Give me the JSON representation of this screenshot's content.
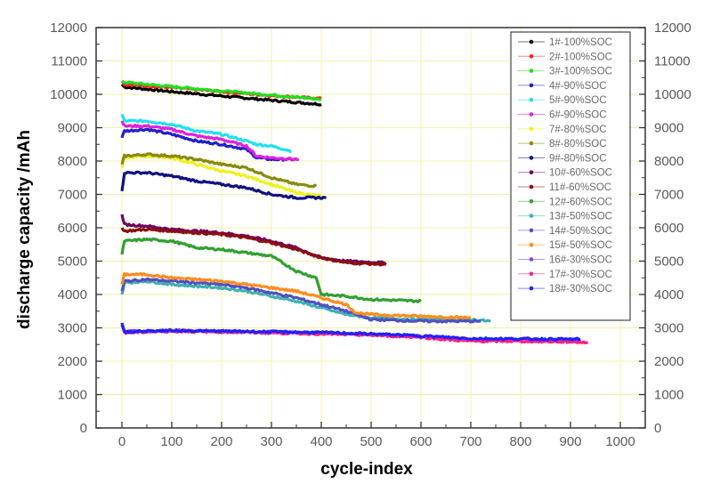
{
  "chart_data": {
    "type": "scatter",
    "title": "",
    "xlabel": "cycle-index",
    "ylabel": "discharge capacity /mAh",
    "xlim": [
      -50,
      1050
    ],
    "ylim": [
      0,
      12000
    ],
    "x_ticks": [
      0,
      100,
      200,
      300,
      400,
      500,
      600,
      700,
      800,
      900,
      1000
    ],
    "y_ticks": [
      0,
      1000,
      2000,
      3000,
      4000,
      5000,
      6000,
      7000,
      8000,
      9000,
      10000,
      11000,
      12000
    ],
    "right_y_ticks": [
      0,
      1000,
      2000,
      3000,
      4000,
      5000,
      6000,
      7000,
      8000,
      9000,
      10000,
      11000,
      12000
    ],
    "grid": true,
    "grid_color": "#f5f0a8",
    "legend_position": "upper right",
    "series": [
      {
        "name": "1#-100%SOC",
        "color": "#000000",
        "x": [
          0,
          5,
          100,
          200,
          300,
          400
        ],
        "y": [
          10300,
          10220,
          10080,
          9950,
          9820,
          9700
        ]
      },
      {
        "name": "2#-100%SOC",
        "color": "#ff2020",
        "x": [
          0,
          5,
          100,
          200,
          300,
          400
        ],
        "y": [
          10400,
          10300,
          10200,
          10080,
          9960,
          9870
        ]
      },
      {
        "name": "3#-100%SOC",
        "color": "#20e020",
        "x": [
          0,
          5,
          100,
          200,
          300,
          400
        ],
        "y": [
          10400,
          10360,
          10230,
          10100,
          9980,
          9850
        ]
      },
      {
        "name": "4#-90%SOC",
        "color": "#2020d0",
        "x": [
          0,
          5,
          50,
          100,
          150,
          200,
          250,
          270,
          300,
          350
        ],
        "y": [
          8700,
          8900,
          8950,
          8800,
          8600,
          8500,
          8350,
          8100,
          8050,
          8050
        ]
      },
      {
        "name": "5#-90%SOC",
        "color": "#20e0f0",
        "x": [
          0,
          5,
          50,
          100,
          150,
          200,
          250,
          270,
          300,
          340
        ],
        "y": [
          9400,
          9200,
          9200,
          9100,
          8900,
          8800,
          8600,
          8500,
          8450,
          8300
        ]
      },
      {
        "name": "6#-90%SOC",
        "color": "#e020e0",
        "x": [
          0,
          5,
          50,
          100,
          150,
          200,
          250,
          270,
          300,
          355
        ],
        "y": [
          9200,
          9050,
          9050,
          8950,
          8750,
          8650,
          8450,
          8150,
          8100,
          8050
        ]
      },
      {
        "name": "7#-80%SOC",
        "color": "#f0f020",
        "x": [
          0,
          5,
          50,
          100,
          150,
          200,
          250,
          300,
          350,
          400
        ],
        "y": [
          7800,
          8100,
          8150,
          8100,
          7900,
          7700,
          7550,
          7300,
          7050,
          6950
        ]
      },
      {
        "name": "8#-80%SOC",
        "color": "#8a8a10",
        "x": [
          0,
          5,
          50,
          100,
          150,
          200,
          250,
          300,
          350,
          390
        ],
        "y": [
          7900,
          8150,
          8200,
          8150,
          8050,
          7900,
          7800,
          7500,
          7300,
          7250
        ]
      },
      {
        "name": "9#-80%SOC",
        "color": "#101080",
        "x": [
          0,
          5,
          50,
          100,
          150,
          200,
          250,
          300,
          350,
          410
        ],
        "y": [
          7100,
          7650,
          7650,
          7550,
          7400,
          7300,
          7200,
          7000,
          6900,
          6900
        ]
      },
      {
        "name": "10#-60%SOC",
        "color": "#700060",
        "x": [
          0,
          5,
          50,
          100,
          150,
          200,
          250,
          300,
          350,
          400,
          450,
          530
        ],
        "y": [
          6400,
          6100,
          6050,
          5950,
          5900,
          5850,
          5750,
          5600,
          5400,
          5100,
          5000,
          4950
        ]
      },
      {
        "name": "11#-60%SOC",
        "color": "#8a1010",
        "x": [
          0,
          5,
          50,
          100,
          150,
          200,
          250,
          300,
          350,
          400,
          450,
          530
        ],
        "y": [
          6000,
          5900,
          5950,
          5900,
          5850,
          5800,
          5700,
          5550,
          5350,
          5100,
          4950,
          4900
        ]
      },
      {
        "name": "12#-60%SOC",
        "color": "#30a030",
        "x": [
          0,
          5,
          50,
          100,
          150,
          200,
          250,
          300,
          350,
          390,
          400,
          450,
          500,
          600
        ],
        "y": [
          5200,
          5600,
          5650,
          5600,
          5400,
          5350,
          5250,
          5150,
          4700,
          4500,
          4000,
          3950,
          3850,
          3800
        ]
      },
      {
        "name": "13#-50%SOC",
        "color": "#40b0b0",
        "x": [
          0,
          5,
          50,
          100,
          150,
          200,
          250,
          300,
          350,
          400,
          450,
          500,
          600,
          700,
          740
        ],
        "y": [
          4000,
          4350,
          4400,
          4300,
          4250,
          4200,
          4100,
          3950,
          3800,
          3600,
          3400,
          3300,
          3250,
          3250,
          3200
        ]
      },
      {
        "name": "14#-50%SOC",
        "color": "#5050c0",
        "x": [
          0,
          5,
          50,
          100,
          150,
          200,
          250,
          300,
          350,
          400,
          450,
          500,
          600,
          720
        ],
        "y": [
          4100,
          4400,
          4450,
          4400,
          4350,
          4300,
          4200,
          4050,
          3900,
          3700,
          3500,
          3250,
          3200,
          3200
        ]
      },
      {
        "name": "15#-50%SOC",
        "color": "#ff8c20",
        "x": [
          0,
          5,
          50,
          100,
          150,
          200,
          250,
          300,
          350,
          400,
          450,
          470,
          500,
          600,
          700
        ],
        "y": [
          4300,
          4600,
          4600,
          4500,
          4450,
          4400,
          4300,
          4200,
          4100,
          3900,
          3700,
          3450,
          3400,
          3350,
          3300
        ]
      },
      {
        "name": "16#-30%SOC",
        "color": "#8040e0",
        "x": [
          0,
          5,
          50,
          100,
          200,
          300,
          400,
          500,
          600,
          650,
          700,
          800,
          900,
          920
        ],
        "y": [
          3100,
          2900,
          2900,
          2920,
          2900,
          2880,
          2850,
          2800,
          2750,
          2700,
          2650,
          2650,
          2650,
          2650
        ]
      },
      {
        "name": "17#-30%SOC",
        "color": "#ff2080",
        "x": [
          0,
          5,
          50,
          100,
          200,
          300,
          400,
          500,
          600,
          650,
          700,
          800,
          900,
          935
        ],
        "y": [
          3100,
          2850,
          2880,
          2900,
          2880,
          2850,
          2820,
          2780,
          2720,
          2650,
          2600,
          2600,
          2580,
          2560
        ]
      },
      {
        "name": "18#-30%SOC",
        "color": "#2020ff",
        "x": [
          0,
          5,
          50,
          100,
          200,
          300,
          400,
          500,
          600,
          650,
          700,
          800,
          900,
          920
        ],
        "y": [
          3150,
          2880,
          2900,
          2920,
          2900,
          2880,
          2860,
          2820,
          2760,
          2720,
          2680,
          2670,
          2660,
          2660
        ]
      }
    ]
  }
}
